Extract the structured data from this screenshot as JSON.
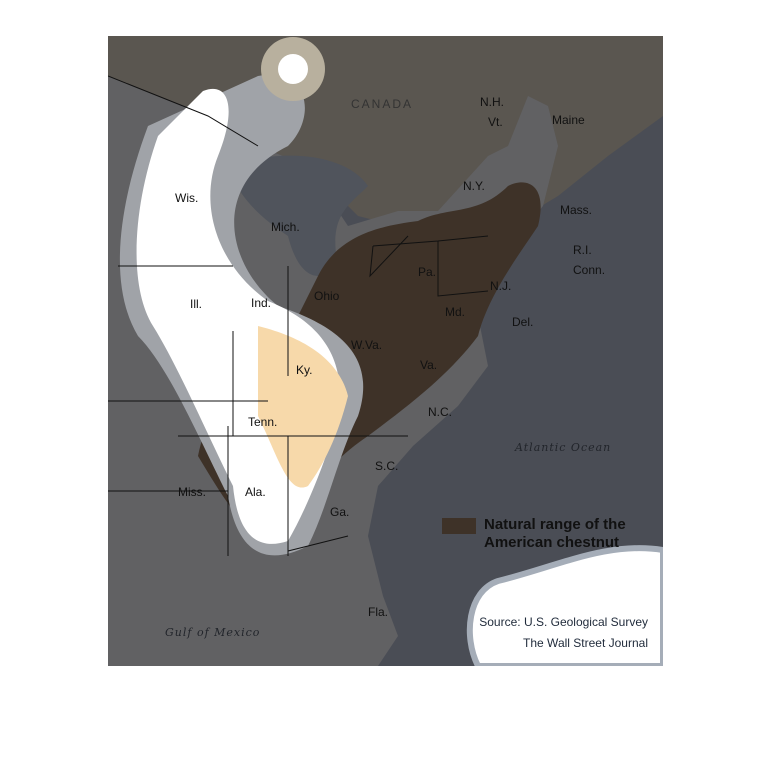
{
  "map": {
    "labels": {
      "canada": "CANADA",
      "atlantic": "Atlantic Ocean",
      "gulf": "Gulf of Mexico",
      "states": {
        "nh": "N.H.",
        "vt": "Vt.",
        "maine": "Maine",
        "ny": "N.Y.",
        "mass": "Mass.",
        "ri": "R.I.",
        "conn": "Conn.",
        "pa": "Pa.",
        "nj": "N.J.",
        "del": "Del.",
        "md": "Md.",
        "wva": "W.Va.",
        "va": "Va.",
        "nc": "N.C.",
        "sc": "S.C.",
        "ga": "Ga.",
        "fla": "Fla.",
        "ala": "Ala.",
        "miss": "Miss.",
        "tenn": "Tenn.",
        "ky": "Ky.",
        "ohio": "Ohio",
        "ind": "Ind.",
        "ill": "Ill.",
        "mich": "Mich.",
        "wis": "Wis."
      }
    },
    "colors": {
      "ocean": "#4a4d55",
      "us_land": "#616163",
      "canada_land": "#5a5650",
      "chestnut_range": "#3e3228",
      "highlight": "#f7d9aa"
    }
  },
  "legend": {
    "swatch_color": "#3e3228",
    "label": "Natural range of the American chestnut"
  },
  "source": {
    "line1": "Source: U.S. Geological Survey",
    "line2": "The Wall Street Journal"
  }
}
